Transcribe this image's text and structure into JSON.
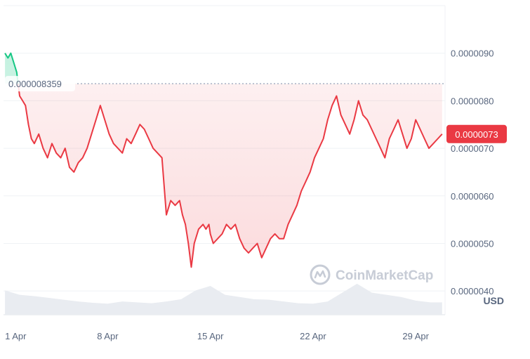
{
  "chart_data": {
    "type": "area",
    "currency_label": "USD",
    "watermark": "CoinMarketCap",
    "y_ticks": [
      {
        "value": 9e-06,
        "label": "0.0000090"
      },
      {
        "value": 8e-06,
        "label": "0.0000080"
      },
      {
        "value": 7e-06,
        "label": "0.0000070"
      },
      {
        "value": 6e-06,
        "label": "0.0000060"
      },
      {
        "value": 5e-06,
        "label": "0.0000050"
      },
      {
        "value": 4e-06,
        "label": "0.0000040"
      }
    ],
    "x_ticks": [
      {
        "day": 1,
        "label": "1 Apr"
      },
      {
        "day": 8,
        "label": "8 Apr"
      },
      {
        "day": 15,
        "label": "15 Apr"
      },
      {
        "day": 22,
        "label": "22 Apr"
      },
      {
        "day": 29,
        "label": "29 Apr"
      }
    ],
    "xlim_days": [
      0.9,
      31.0
    ],
    "ylim": [
      3.5e-06,
      1e-05
    ],
    "reference_line": {
      "value": 8.359e-06,
      "label": "0.000008359",
      "style": "dotted"
    },
    "current_price": {
      "value": 7.3e-06,
      "label": "0.0000073"
    },
    "colors": {
      "above": "#16c784",
      "below": "#ea3943",
      "grid": "#eff2f5",
      "text": "#58667e",
      "badge": "#ea3943"
    },
    "grid": true,
    "series": {
      "x_days": [
        1.0,
        1.2,
        1.4,
        1.6,
        1.8,
        2.0,
        2.2,
        2.4,
        2.6,
        2.8,
        3.0,
        3.3,
        3.6,
        3.9,
        4.2,
        4.5,
        4.8,
        5.1,
        5.4,
        5.7,
        6.0,
        6.3,
        6.6,
        6.9,
        7.2,
        7.5,
        7.8,
        8.1,
        8.4,
        8.7,
        9.0,
        9.3,
        9.6,
        9.9,
        10.2,
        10.5,
        10.8,
        11.1,
        11.4,
        11.7,
        12.0,
        12.3,
        12.6,
        12.9,
        13.1,
        13.3,
        13.5,
        13.7,
        13.9,
        14.2,
        14.5,
        14.7,
        14.9,
        15.0,
        15.2,
        15.5,
        15.8,
        16.1,
        16.4,
        16.7,
        17.0,
        17.3,
        17.6,
        17.9,
        18.2,
        18.5,
        18.8,
        19.1,
        19.4,
        19.7,
        20.0,
        20.3,
        20.6,
        20.9,
        21.2,
        21.5,
        21.8,
        22.1,
        22.4,
        22.7,
        23.0,
        23.3,
        23.6,
        23.9,
        24.2,
        24.5,
        24.8,
        25.1,
        25.4,
        25.7,
        26.0,
        26.3,
        26.6,
        26.9,
        27.2,
        27.5,
        27.8,
        28.1,
        28.4,
        28.7,
        29.0,
        29.3,
        29.6,
        29.9,
        30.2,
        30.5,
        30.8
      ],
      "values": [
        9e-06,
        8.9e-06,
        9e-06,
        8.8e-06,
        8.6e-06,
        8.1e-06,
        8e-06,
        7.9e-06,
        7.5e-06,
        7.2e-06,
        7.1e-06,
        7.3e-06,
        7e-06,
        6.8e-06,
        7.1e-06,
        6.9e-06,
        6.8e-06,
        7e-06,
        6.6e-06,
        6.5e-06,
        6.7e-06,
        6.8e-06,
        7e-06,
        7.3e-06,
        7.6e-06,
        7.9e-06,
        7.6e-06,
        7.3e-06,
        7.1e-06,
        7e-06,
        6.9e-06,
        7.2e-06,
        7.1e-06,
        7.3e-06,
        7.5e-06,
        7.4e-06,
        7.2e-06,
        7e-06,
        6.9e-06,
        6.8e-06,
        5.6e-06,
        5.9e-06,
        5.8e-06,
        5.9e-06,
        5.6e-06,
        5.4e-06,
        5e-06,
        4.5e-06,
        5e-06,
        5.3e-06,
        5.4e-06,
        5.3e-06,
        5.4e-06,
        5.2e-06,
        5e-06,
        5.1e-06,
        5.2e-06,
        5.4e-06,
        5.3e-06,
        5.4e-06,
        5.1e-06,
        4.9e-06,
        4.8e-06,
        4.9e-06,
        5e-06,
        4.7e-06,
        4.9e-06,
        5.1e-06,
        5.2e-06,
        5.1e-06,
        5.1e-06,
        5.4e-06,
        5.6e-06,
        5.8e-06,
        6.1e-06,
        6.3e-06,
        6.5e-06,
        6.8e-06,
        7e-06,
        7.2e-06,
        7.6e-06,
        7.9e-06,
        8.1e-06,
        7.7e-06,
        7.5e-06,
        7.3e-06,
        7.6e-06,
        8e-06,
        7.7e-06,
        7.6e-06,
        7.4e-06,
        7.2e-06,
        7e-06,
        6.8e-06,
        7.2e-06,
        7.4e-06,
        7.6e-06,
        7.3e-06,
        7e-06,
        7.2e-06,
        7.6e-06,
        7.4e-06,
        7.2e-06,
        7e-06,
        7.1e-06,
        7.2e-06,
        7.3e-06
      ]
    },
    "volume": {
      "x_days": [
        1,
        2,
        3,
        4,
        5,
        6,
        7,
        8,
        9,
        10,
        11,
        12,
        13,
        14,
        15,
        16,
        17,
        18,
        19,
        20,
        21,
        22,
        23,
        24,
        25,
        26,
        27,
        28,
        29,
        30,
        30.8
      ],
      "values": [
        0.55,
        0.45,
        0.42,
        0.38,
        0.34,
        0.3,
        0.27,
        0.25,
        0.3,
        0.28,
        0.26,
        0.3,
        0.35,
        0.55,
        0.65,
        0.45,
        0.4,
        0.35,
        0.34,
        0.3,
        0.26,
        0.25,
        0.3,
        0.5,
        0.7,
        0.5,
        0.45,
        0.4,
        0.32,
        0.28,
        0.28
      ]
    }
  }
}
